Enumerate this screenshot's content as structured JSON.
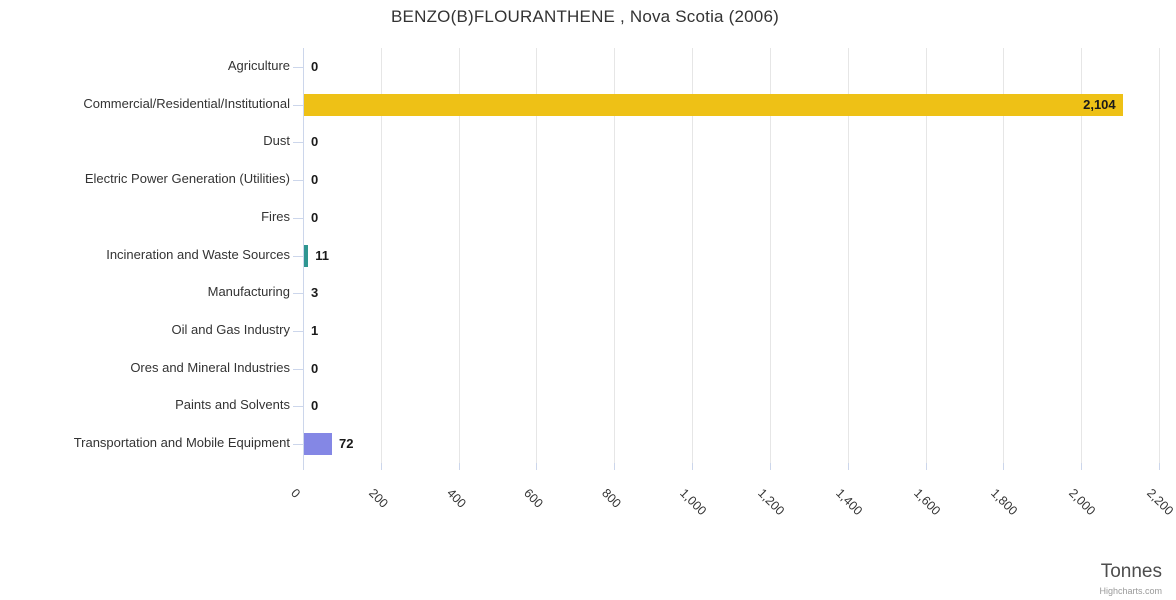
{
  "chart_data": {
    "type": "bar",
    "title": "BENZO(B)FLOURANTHENE , Nova Scotia (2006)",
    "xlabel": "Tonnes",
    "credit": "Highcharts.com",
    "orientation": "horizontal",
    "legend": "off",
    "grid": "on",
    "categories": [
      "Agriculture",
      "Commercial/Residential/Institutional",
      "Dust",
      "Electric Power Generation (Utilities)",
      "Fires",
      "Incineration and Waste Sources",
      "Manufacturing",
      "Oil and Gas Industry",
      "Ores and Mineral Industries",
      "Paints and Solvents",
      "Transportation and Mobile Equipment"
    ],
    "values": [
      0,
      2104,
      0,
      0,
      0,
      11,
      3,
      1,
      0,
      0,
      72
    ],
    "value_labels": [
      "0",
      "2,104",
      "0",
      "0",
      "0",
      "11",
      "3",
      "1",
      "0",
      "0",
      "72"
    ],
    "bar_colors": [
      null,
      "#EEC116",
      null,
      null,
      null,
      "#2F9691",
      null,
      null,
      null,
      null,
      "#8487E5"
    ],
    "xlim": [
      0,
      2200
    ],
    "tick_step": 200,
    "tick_labels": [
      "0",
      "200",
      "400",
      "600",
      "800",
      "1,000",
      "1,200",
      "1,400",
      "1,600",
      "1,800",
      "2,000",
      "2,200"
    ],
    "colors": {
      "gridline": "#e6e6e6",
      "axis": "#ccd6eb",
      "title_text": "#333333",
      "label_text": "#333333"
    }
  }
}
